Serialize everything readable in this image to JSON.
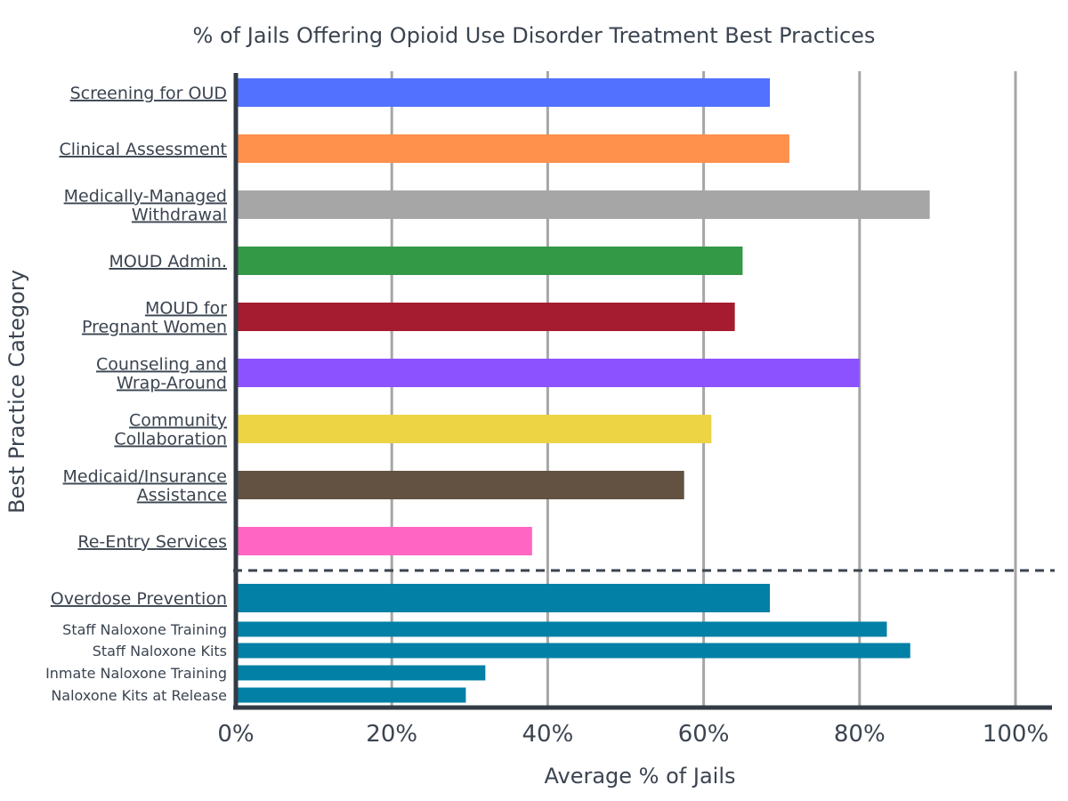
{
  "chart_data": {
    "type": "bar",
    "orientation": "horizontal",
    "title": "% of Jails Offering Opioid Use Disorder Treatment Best Practices",
    "xlabel": "Average % of Jails",
    "ylabel": "Best Practice Category",
    "xlim": [
      0,
      100
    ],
    "x_ticks": [
      "0%",
      "20%",
      "40%",
      "60%",
      "80%",
      "100%"
    ],
    "grid": "vertical",
    "legend": "none",
    "categories": [
      {
        "label_lines": [
          "Screening for OUD"
        ],
        "value": 68.5,
        "color": "#5271ff",
        "kind": "main"
      },
      {
        "label_lines": [
          "Clinical Assessment"
        ],
        "value": 71,
        "color": "#ff914d",
        "kind": "main"
      },
      {
        "label_lines": [
          "Medically-Managed",
          "Withdrawal"
        ],
        "value": 89,
        "color": "#a6a6a6",
        "kind": "main"
      },
      {
        "label_lines": [
          "MOUD Admin."
        ],
        "value": 65,
        "color": "#339947",
        "kind": "main"
      },
      {
        "label_lines": [
          "MOUD for",
          "Pregnant Women"
        ],
        "value": 64,
        "color": "#a51c30",
        "kind": "main"
      },
      {
        "label_lines": [
          "Counseling and",
          "Wrap-Around"
        ],
        "value": 80,
        "color": "#8c52ff",
        "kind": "main"
      },
      {
        "label_lines": [
          "Community",
          "Collaboration"
        ],
        "value": 61,
        "color": "#ecd444",
        "kind": "main"
      },
      {
        "label_lines": [
          "Medicaid/Insurance",
          "Assistance"
        ],
        "value": 57.5,
        "color": "#635242",
        "kind": "main"
      },
      {
        "label_lines": [
          "Re-Entry Services"
        ],
        "value": 38,
        "color": "#ff66c4",
        "kind": "main"
      },
      {
        "label_lines": [
          "Overdose Prevention"
        ],
        "value": 68.5,
        "color": "#0280a6",
        "kind": "main"
      },
      {
        "label_lines": [
          "Staff Naloxone Training"
        ],
        "value": 83.5,
        "color": "#0280a6",
        "kind": "sub"
      },
      {
        "label_lines": [
          "Staff Naloxone Kits"
        ],
        "value": 86.5,
        "color": "#0280a6",
        "kind": "sub"
      },
      {
        "label_lines": [
          "Inmate Naloxone Training"
        ],
        "value": 32,
        "color": "#0280a6",
        "kind": "sub"
      },
      {
        "label_lines": [
          "Naloxone Kits at Release"
        ],
        "value": 29.5,
        "color": "#0280a6",
        "kind": "sub"
      }
    ],
    "separator": {
      "style": "dashed",
      "after_category": "Re-Entry Services"
    }
  }
}
